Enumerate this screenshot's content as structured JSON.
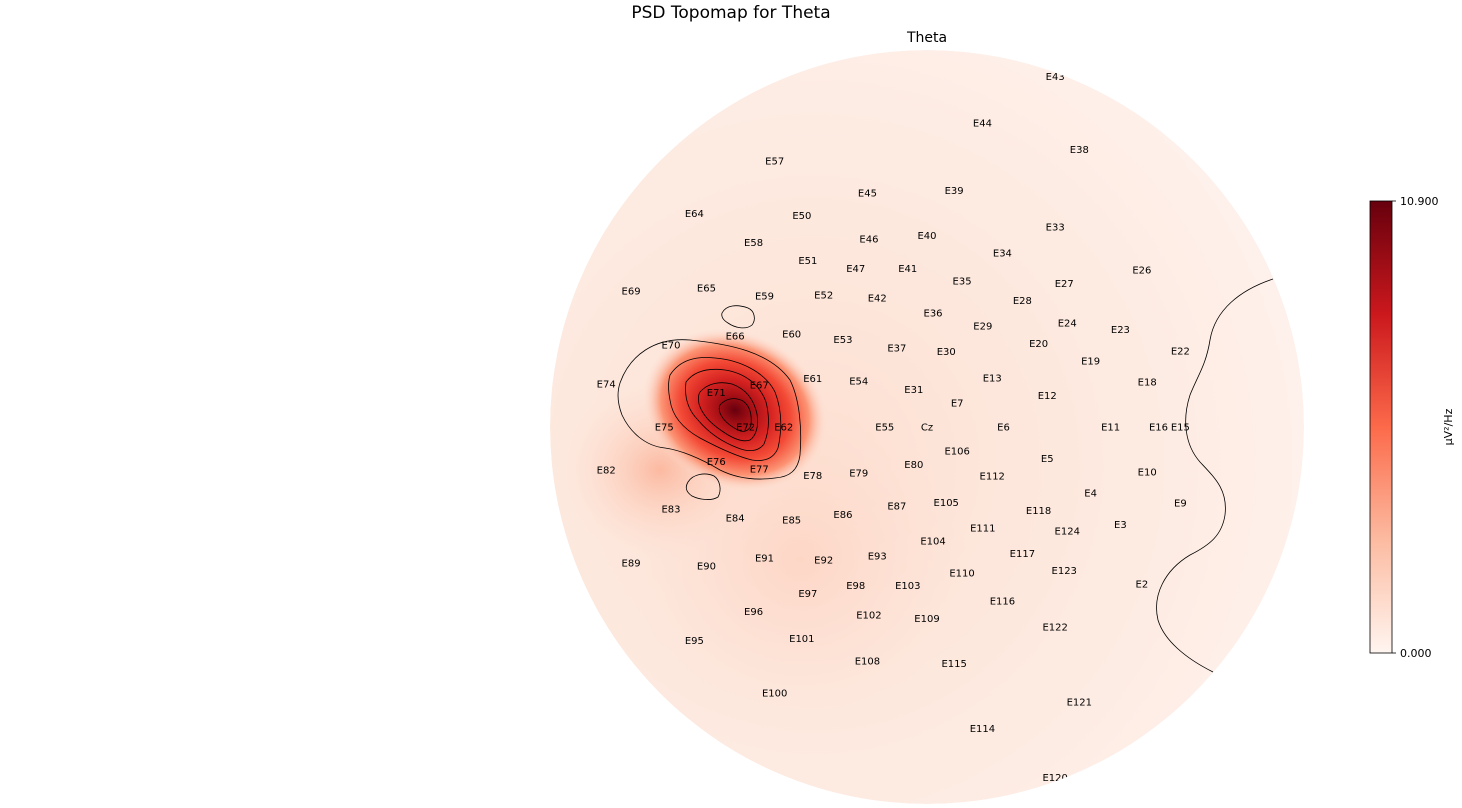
{
  "figure": {
    "suptitle": "PSD Topomap for Theta",
    "subplot_title": "Theta"
  },
  "chart_data": {
    "type": "heatmap",
    "title": "PSD Topomap for Theta",
    "subtitle": "Theta",
    "colormap": "Reds",
    "colorbar": {
      "label": "µV²/Hz",
      "min": 0.0,
      "max": 10.9,
      "tick_labels": [
        "10.900",
        "0.000"
      ]
    },
    "peak": {
      "channel_area": "E71 / E72",
      "value": 10.9
    },
    "channels": [
      {
        "name": "E43",
        "x": 0.34,
        "y": 0.93
      },
      {
        "name": "E44",
        "x": 0.147,
        "y": 0.806
      },
      {
        "name": "E38",
        "x": 0.404,
        "y": 0.736
      },
      {
        "name": "E57",
        "x": -0.404,
        "y": 0.706
      },
      {
        "name": "E45",
        "x": -0.158,
        "y": 0.621
      },
      {
        "name": "E39",
        "x": 0.072,
        "y": 0.627
      },
      {
        "name": "E64",
        "x": -0.617,
        "y": 0.566
      },
      {
        "name": "E50",
        "x": -0.332,
        "y": 0.561
      },
      {
        "name": "E33",
        "x": 0.34,
        "y": 0.53
      },
      {
        "name": "E46",
        "x": -0.154,
        "y": 0.499
      },
      {
        "name": "E40",
        "x": 0.0,
        "y": 0.508
      },
      {
        "name": "E58",
        "x": -0.46,
        "y": 0.489
      },
      {
        "name": "E34",
        "x": 0.2,
        "y": 0.462
      },
      {
        "name": "E51",
        "x": -0.316,
        "y": 0.441
      },
      {
        "name": "E47",
        "x": -0.189,
        "y": 0.421
      },
      {
        "name": "E41",
        "x": -0.051,
        "y": 0.421
      },
      {
        "name": "E26",
        "x": 0.57,
        "y": 0.417
      },
      {
        "name": "E35",
        "x": 0.093,
        "y": 0.387
      },
      {
        "name": "E27",
        "x": 0.364,
        "y": 0.38
      },
      {
        "name": "E69",
        "x": -0.785,
        "y": 0.361
      },
      {
        "name": "E65",
        "x": -0.585,
        "y": 0.369
      },
      {
        "name": "E59",
        "x": -0.431,
        "y": 0.348
      },
      {
        "name": "E52",
        "x": -0.274,
        "y": 0.35
      },
      {
        "name": "E42",
        "x": -0.132,
        "y": 0.342
      },
      {
        "name": "E28",
        "x": 0.253,
        "y": 0.336
      },
      {
        "name": "E36",
        "x": 0.016,
        "y": 0.303
      },
      {
        "name": "E24",
        "x": 0.372,
        "y": 0.276
      },
      {
        "name": "E23",
        "x": 0.513,
        "y": 0.258
      },
      {
        "name": "E29",
        "x": 0.148,
        "y": 0.268
      },
      {
        "name": "E66",
        "x": -0.509,
        "y": 0.242
      },
      {
        "name": "E60",
        "x": -0.359,
        "y": 0.247
      },
      {
        "name": "E53",
        "x": -0.223,
        "y": 0.232
      },
      {
        "name": "E70",
        "x": -0.679,
        "y": 0.218
      },
      {
        "name": "E20",
        "x": 0.296,
        "y": 0.222
      },
      {
        "name": "E37",
        "x": -0.08,
        "y": 0.21
      },
      {
        "name": "E30",
        "x": 0.051,
        "y": 0.2
      },
      {
        "name": "E22",
        "x": 0.672,
        "y": 0.202
      },
      {
        "name": "E19",
        "x": 0.434,
        "y": 0.175
      },
      {
        "name": "E61",
        "x": -0.303,
        "y": 0.128
      },
      {
        "name": "E54",
        "x": -0.181,
        "y": 0.122
      },
      {
        "name": "E13",
        "x": 0.173,
        "y": 0.13
      },
      {
        "name": "E18",
        "x": 0.584,
        "y": 0.12
      },
      {
        "name": "E74",
        "x": -0.851,
        "y": 0.114
      },
      {
        "name": "E67",
        "x": -0.445,
        "y": 0.111
      },
      {
        "name": "E31",
        "x": -0.035,
        "y": 0.099
      },
      {
        "name": "E71",
        "x": -0.559,
        "y": 0.091
      },
      {
        "name": "E12",
        "x": 0.319,
        "y": 0.083
      },
      {
        "name": "E7",
        "x": 0.08,
        "y": 0.063
      },
      {
        "name": "E75",
        "x": -0.697,
        "y": 0.0
      },
      {
        "name": "E72",
        "x": -0.481,
        "y": 0.0
      },
      {
        "name": "E62",
        "x": -0.38,
        "y": 0.0
      },
      {
        "name": "E55",
        "x": -0.112,
        "y": 0.0
      },
      {
        "name": "Cz",
        "x": 0.0,
        "y": 0.0
      },
      {
        "name": "E6",
        "x": 0.203,
        "y": 0.0
      },
      {
        "name": "E11",
        "x": 0.487,
        "y": 0.0
      },
      {
        "name": "E16",
        "x": 0.614,
        "y": 0.0
      },
      {
        "name": "E15",
        "x": 0.672,
        "y": 0.0
      },
      {
        "name": "E106",
        "x": 0.08,
        "y": -0.063
      },
      {
        "name": "E76",
        "x": -0.559,
        "y": -0.091
      },
      {
        "name": "E80",
        "x": -0.035,
        "y": -0.099
      },
      {
        "name": "E5",
        "x": 0.319,
        "y": -0.083
      },
      {
        "name": "E82",
        "x": -0.851,
        "y": -0.114
      },
      {
        "name": "E77",
        "x": -0.445,
        "y": -0.111
      },
      {
        "name": "E79",
        "x": -0.181,
        "y": -0.122
      },
      {
        "name": "E112",
        "x": 0.173,
        "y": -0.13
      },
      {
        "name": "E78",
        "x": -0.303,
        "y": -0.128
      },
      {
        "name": "E10",
        "x": 0.584,
        "y": -0.12
      },
      {
        "name": "E4",
        "x": 0.434,
        "y": -0.175
      },
      {
        "name": "E9",
        "x": 0.672,
        "y": -0.202
      },
      {
        "name": "E105",
        "x": 0.051,
        "y": -0.2
      },
      {
        "name": "E87",
        "x": -0.08,
        "y": -0.21
      },
      {
        "name": "E118",
        "x": 0.296,
        "y": -0.222
      },
      {
        "name": "E83",
        "x": -0.679,
        "y": -0.218
      },
      {
        "name": "E86",
        "x": -0.223,
        "y": -0.232
      },
      {
        "name": "E85",
        "x": -0.359,
        "y": -0.247
      },
      {
        "name": "E84",
        "x": -0.509,
        "y": -0.242
      },
      {
        "name": "E3",
        "x": 0.513,
        "y": -0.258
      },
      {
        "name": "E111",
        "x": 0.148,
        "y": -0.268
      },
      {
        "name": "E124",
        "x": 0.372,
        "y": -0.276
      },
      {
        "name": "E104",
        "x": 0.016,
        "y": -0.303
      },
      {
        "name": "E91",
        "x": -0.431,
        "y": -0.348
      },
      {
        "name": "E93",
        "x": -0.132,
        "y": -0.342
      },
      {
        "name": "E92",
        "x": -0.274,
        "y": -0.353
      },
      {
        "name": "E117",
        "x": 0.253,
        "y": -0.336
      },
      {
        "name": "E89",
        "x": -0.785,
        "y": -0.361
      },
      {
        "name": "E90",
        "x": -0.585,
        "y": -0.369
      },
      {
        "name": "E123",
        "x": 0.364,
        "y": -0.38
      },
      {
        "name": "E110",
        "x": 0.093,
        "y": -0.387
      },
      {
        "name": "E98",
        "x": -0.189,
        "y": -0.421
      },
      {
        "name": "E103",
        "x": -0.051,
        "y": -0.421
      },
      {
        "name": "E2",
        "x": 0.57,
        "y": -0.417
      },
      {
        "name": "E97",
        "x": -0.316,
        "y": -0.441
      },
      {
        "name": "E116",
        "x": 0.2,
        "y": -0.462
      },
      {
        "name": "E96",
        "x": -0.46,
        "y": -0.489
      },
      {
        "name": "E102",
        "x": -0.154,
        "y": -0.499
      },
      {
        "name": "E109",
        "x": 0.0,
        "y": -0.508
      },
      {
        "name": "E122",
        "x": 0.34,
        "y": -0.53
      },
      {
        "name": "E101",
        "x": -0.332,
        "y": -0.561
      },
      {
        "name": "E95",
        "x": -0.617,
        "y": -0.566
      },
      {
        "name": "E108",
        "x": -0.158,
        "y": -0.621
      },
      {
        "name": "E115",
        "x": 0.072,
        "y": -0.627
      },
      {
        "name": "E100",
        "x": -0.404,
        "y": -0.706
      },
      {
        "name": "E121",
        "x": 0.404,
        "y": -0.73
      },
      {
        "name": "E114",
        "x": 0.147,
        "y": -0.8
      },
      {
        "name": "E120",
        "x": 0.34,
        "y": -0.93
      }
    ]
  }
}
